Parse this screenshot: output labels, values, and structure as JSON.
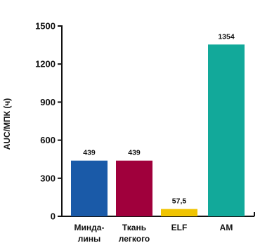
{
  "chart_data": {
    "type": "bar",
    "title": "",
    "xlabel": "",
    "ylabel": "AUC/МПК (ч)",
    "ylim": [
      0,
      1500
    ],
    "yticks": [
      0,
      300,
      600,
      900,
      1200,
      1500
    ],
    "ytick_labels": [
      "0",
      "300",
      "600",
      "900",
      "1200",
      "1500"
    ],
    "categories": [
      "Минда-\nлины",
      "Ткань\nлегкого",
      "ELF",
      "АМ"
    ],
    "values": [
      439,
      439,
      57.5,
      1354
    ],
    "value_labels": [
      "439",
      "439",
      "57,5",
      "1354"
    ],
    "colors": [
      "#1a5aa8",
      "#a0003c",
      "#f0c400",
      "#12a99a"
    ],
    "grid": false,
    "legend": "none"
  }
}
